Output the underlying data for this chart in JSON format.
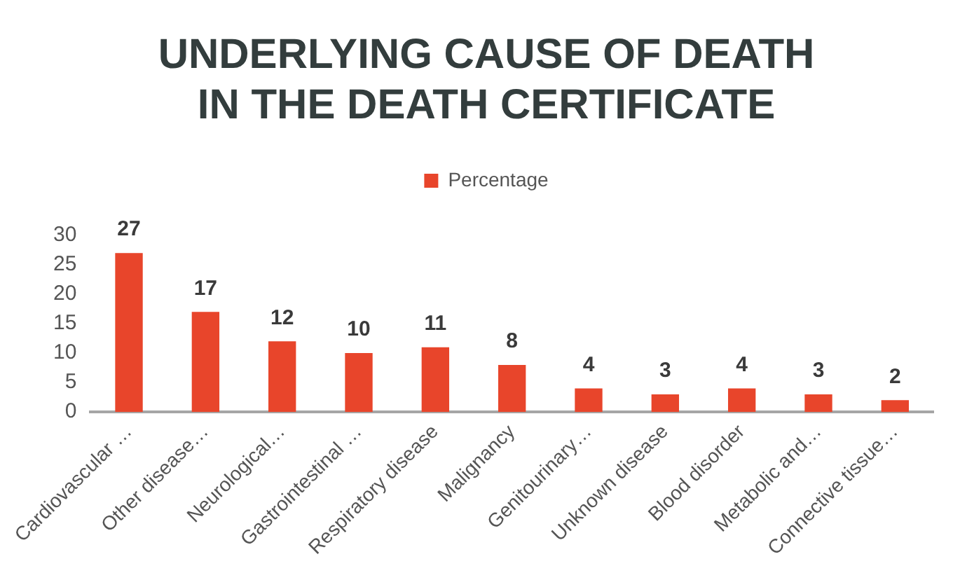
{
  "chart_data": {
    "type": "bar",
    "title": "UNDERLYING CAUSE OF DEATH IN THE DEATH CERTIFICATE",
    "categories": [
      "Cardiovascular …",
      "Other disease…",
      "Neurological…",
      "Gastrointestinal …",
      "Respiratory disease",
      "Malignancy",
      "Genitourinary…",
      "Unknown disease",
      "Blood disorder",
      "Metabolic and…",
      "Connective tissue…"
    ],
    "series": [
      {
        "name": "Percentage",
        "color": "#e8452b",
        "values": [
          27,
          17,
          12,
          10,
          11,
          8,
          4,
          3,
          4,
          3,
          2
        ]
      }
    ],
    "ylim": [
      0,
      30
    ],
    "yticks": [
      0,
      5,
      10,
      15,
      20,
      25,
      30
    ],
    "grid": false,
    "legend": "top",
    "data_labels": true
  }
}
